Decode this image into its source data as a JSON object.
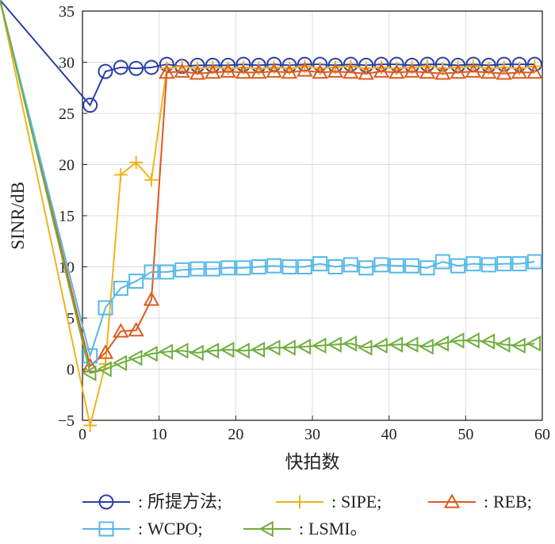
{
  "chart_data": {
    "type": "line",
    "xlabel": "快拍数",
    "ylabel": "SINR/dB",
    "xlim": [
      0,
      60
    ],
    "ylim": [
      -5,
      35
    ],
    "x_ticks": [
      "0",
      "10",
      "20",
      "30",
      "40",
      "50",
      "60"
    ],
    "y_ticks": [
      "−5",
      "0",
      "5",
      "10",
      "15",
      "20",
      "25",
      "30",
      "35"
    ],
    "grid": true,
    "legend_position": "bottom",
    "colors": {
      "proposed": "#2b3fa6",
      "sipe": "#f0b31f",
      "reb": "#dd5a1e",
      "wcpo": "#55b8e8",
      "lsmi": "#6fae3d"
    },
    "series": [
      {
        "key": "proposed",
        "name": "所提方法;",
        "marker": "circle",
        "x": [
          1,
          3,
          5,
          7,
          9,
          11,
          13,
          15,
          17,
          19,
          21,
          23,
          25,
          27,
          29,
          31,
          33,
          35,
          37,
          39,
          41,
          43,
          45,
          47,
          49,
          51,
          53,
          55,
          57,
          59
        ],
        "y": [
          25.8,
          29.1,
          29.5,
          29.4,
          29.5,
          29.8,
          29.6,
          29.7,
          29.7,
          29.7,
          29.8,
          29.7,
          29.8,
          29.7,
          29.8,
          29.8,
          29.7,
          29.8,
          29.7,
          29.8,
          29.8,
          29.7,
          29.8,
          29.8,
          29.7,
          29.8,
          29.7,
          29.8,
          29.8,
          29.8
        ]
      },
      {
        "key": "sipe",
        "name": "SIPE;",
        "marker": "plus",
        "x": [
          1,
          3,
          5,
          7,
          9,
          11,
          13,
          15,
          17,
          19,
          21,
          23,
          25,
          27,
          29,
          31,
          33,
          35,
          37,
          39,
          41,
          43,
          45,
          47,
          49,
          51,
          53,
          55,
          57,
          59
        ],
        "y": [
          -5.5,
          0.5,
          19.0,
          20.2,
          18.5,
          29.4,
          29.6,
          29.4,
          29.5,
          29.4,
          29.5,
          29.4,
          29.5,
          29.4,
          29.6,
          29.4,
          29.5,
          29.6,
          29.4,
          29.5,
          29.4,
          29.5,
          29.6,
          29.4,
          29.5,
          29.6,
          29.4,
          29.5,
          29.4,
          29.6
        ]
      },
      {
        "key": "reb",
        "name": "REB;",
        "marker": "triangle-up",
        "x": [
          1,
          3,
          5,
          7,
          9,
          11,
          13,
          15,
          17,
          19,
          21,
          23,
          25,
          27,
          29,
          31,
          33,
          35,
          37,
          39,
          41,
          43,
          45,
          47,
          49,
          51,
          53,
          55,
          57,
          59
        ],
        "y": [
          0.3,
          1.6,
          3.7,
          3.8,
          6.8,
          29.0,
          29.1,
          28.9,
          29.0,
          29.1,
          29.0,
          29.0,
          29.1,
          29.0,
          29.2,
          29.0,
          29.1,
          29.0,
          28.9,
          29.1,
          29.0,
          29.1,
          29.0,
          28.9,
          29.0,
          29.1,
          29.0,
          28.9,
          29.0,
          29.0
        ]
      },
      {
        "key": "wcpo",
        "name": "WCPO;",
        "marker": "square",
        "x": [
          1,
          3,
          5,
          7,
          9,
          11,
          13,
          15,
          17,
          19,
          21,
          23,
          25,
          27,
          29,
          31,
          33,
          35,
          37,
          39,
          41,
          43,
          45,
          47,
          49,
          51,
          53,
          55,
          57,
          59
        ],
        "y": [
          1.3,
          6.0,
          7.9,
          8.6,
          9.5,
          9.5,
          9.7,
          9.8,
          9.8,
          9.9,
          9.9,
          10.0,
          10.1,
          10.0,
          10.0,
          10.3,
          10.0,
          10.2,
          9.9,
          10.2,
          10.1,
          10.1,
          9.9,
          10.5,
          10.1,
          10.3,
          10.2,
          10.3,
          10.3,
          10.5
        ]
      },
      {
        "key": "lsmi",
        "name": "LSMI。",
        "marker": "triangle-left",
        "x": [
          1,
          3,
          5,
          7,
          9,
          11,
          13,
          15,
          17,
          19,
          21,
          23,
          25,
          27,
          29,
          31,
          33,
          35,
          37,
          39,
          41,
          43,
          45,
          47,
          49,
          51,
          53,
          55,
          57,
          59
        ],
        "y": [
          -0.4,
          0.0,
          0.6,
          1.1,
          1.5,
          1.7,
          1.8,
          1.6,
          1.8,
          1.9,
          1.8,
          1.9,
          2.1,
          2.1,
          2.2,
          2.3,
          2.4,
          2.5,
          2.1,
          2.3,
          2.4,
          2.4,
          2.2,
          2.5,
          2.8,
          2.8,
          2.7,
          2.4,
          2.3,
          2.5
        ]
      }
    ]
  }
}
